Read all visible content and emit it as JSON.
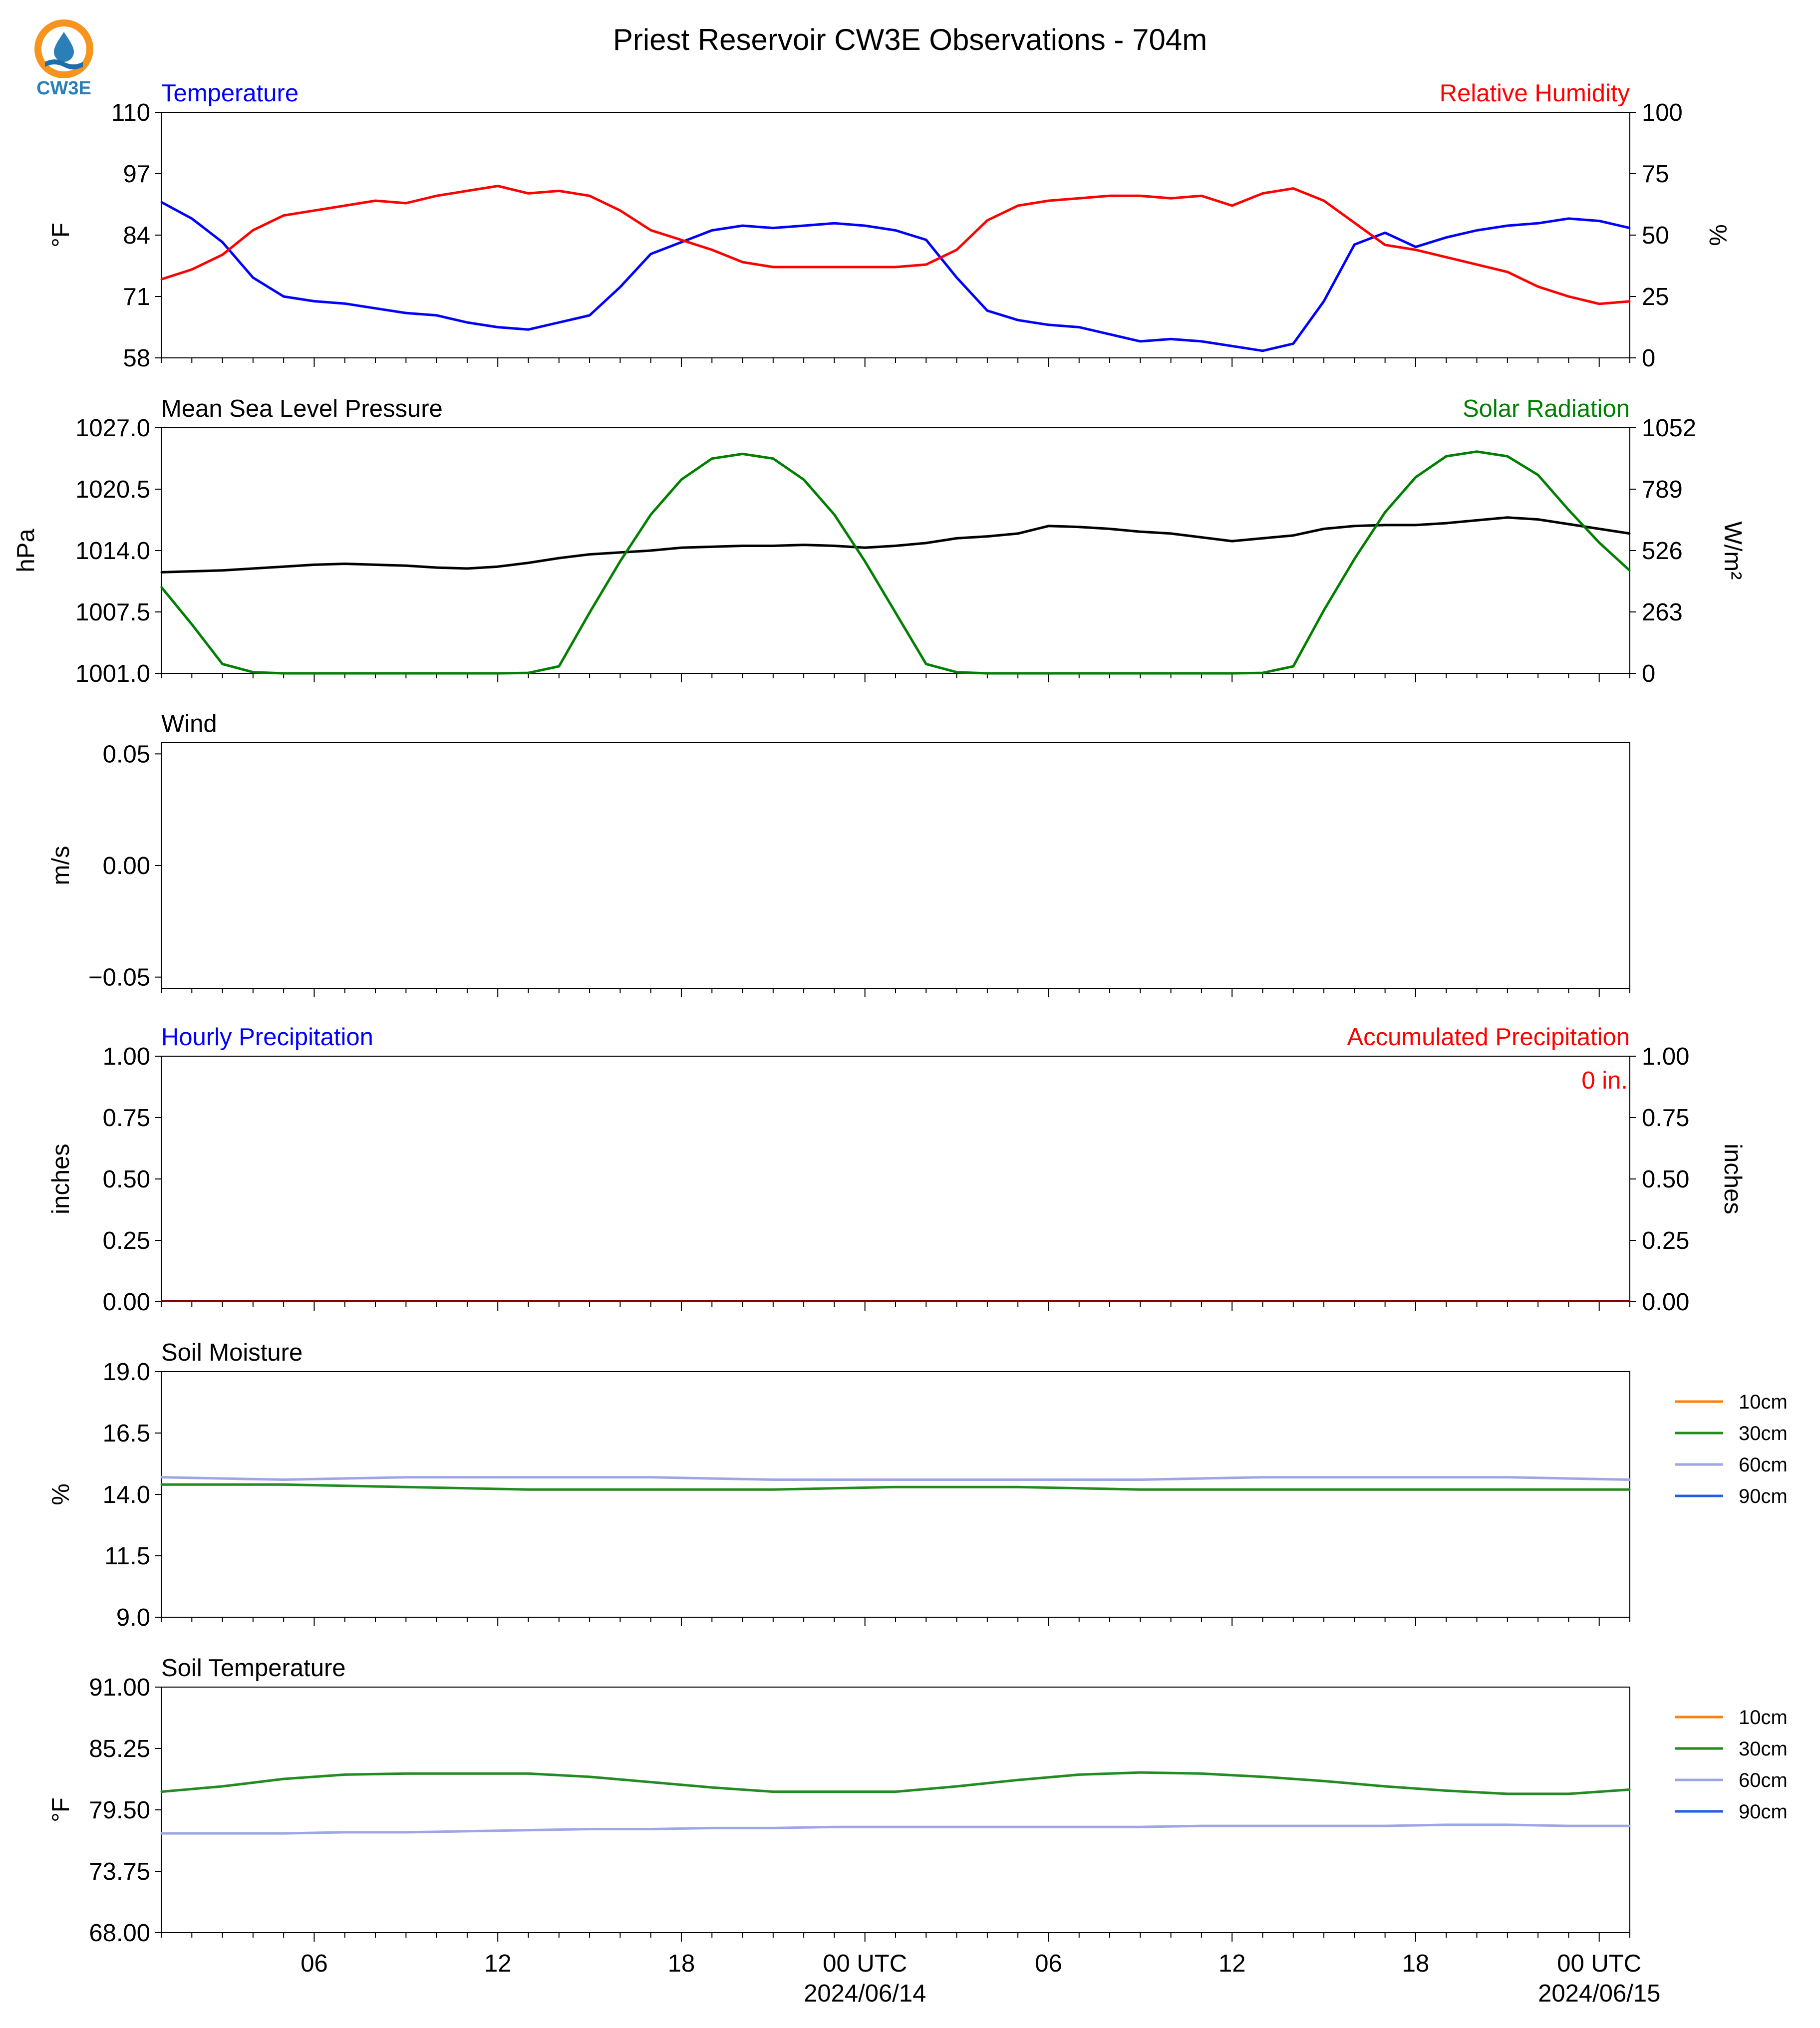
{
  "title": "Priest Reservoir CW3E Observations - 704m",
  "logo": {
    "text": "CW3E",
    "colors": {
      "ring": "#f7941d",
      "drop": "#2a7fb8",
      "wave": "#1b6fa8",
      "text": "#2a7fb8"
    }
  },
  "chart_data": [
    {
      "type": "line",
      "title_left": "Temperature",
      "title_right": "Relative Humidity",
      "ylabel_left": "°F",
      "ylabel_right": "%",
      "ylim_left": [
        58,
        110
      ],
      "yticks_left": [
        58,
        71,
        84,
        97,
        110
      ],
      "ylim_right": [
        0,
        100
      ],
      "yticks_right": [
        0,
        25,
        50,
        75,
        100
      ],
      "x_hours": [
        0,
        1,
        2,
        3,
        4,
        5,
        6,
        7,
        8,
        9,
        10,
        11,
        12,
        13,
        14,
        15,
        16,
        17,
        18,
        19,
        20,
        21,
        22,
        23,
        24,
        25,
        26,
        27,
        28,
        29,
        30,
        31,
        32,
        33,
        34,
        35,
        36,
        37,
        38,
        39,
        40,
        41,
        42,
        43,
        44,
        45,
        46,
        47,
        48
      ],
      "series": [
        {
          "name": "Temperature",
          "axis": "left",
          "color": "#0000ff",
          "values": [
            91,
            87.5,
            82.5,
            75,
            71,
            70,
            69.5,
            68.5,
            67.5,
            67,
            65.5,
            64.5,
            64,
            65.5,
            67,
            73,
            80,
            82.5,
            85,
            86,
            85.5,
            86,
            86.5,
            86,
            85,
            83,
            75,
            68,
            66,
            65,
            64.5,
            63,
            61.5,
            62,
            61.5,
            60.5,
            59.5,
            61,
            70,
            82,
            84.5,
            81.5,
            83.5,
            85,
            86,
            86.5,
            87.5,
            87,
            85.5
          ]
        },
        {
          "name": "Relative Humidity",
          "axis": "right",
          "color": "#ff0000",
          "values": [
            32,
            36,
            42,
            52,
            58,
            60,
            62,
            64,
            63,
            66,
            68,
            70,
            67,
            68,
            66,
            60,
            52,
            48,
            44,
            39,
            37,
            37,
            37,
            37,
            37,
            38,
            44,
            56,
            62,
            64,
            65,
            66,
            66,
            65,
            66,
            62,
            67,
            69,
            64,
            55,
            46,
            44,
            41,
            38,
            35,
            29,
            25,
            22,
            23
          ]
        }
      ]
    },
    {
      "type": "line",
      "title_left": "Mean Sea Level Pressure",
      "title_right": "Solar Radiation",
      "ylabel_left": "hPa",
      "ylabel_right": "W/m²",
      "ylim_left": [
        1001.0,
        1027.0
      ],
      "yticks_left": [
        "1001.0",
        "1007.5",
        "1014.0",
        "1020.5",
        "1027.0"
      ],
      "ylim_right": [
        0,
        1052
      ],
      "yticks_right": [
        0,
        263,
        526,
        789,
        1052
      ],
      "x_hours": [
        0,
        1,
        2,
        3,
        4,
        5,
        6,
        7,
        8,
        9,
        10,
        11,
        12,
        13,
        14,
        15,
        16,
        17,
        18,
        19,
        20,
        21,
        22,
        23,
        24,
        25,
        26,
        27,
        28,
        29,
        30,
        31,
        32,
        33,
        34,
        35,
        36,
        37,
        38,
        39,
        40,
        41,
        42,
        43,
        44,
        45,
        46,
        47,
        48
      ],
      "series": [
        {
          "name": "Mean Sea Level Pressure",
          "axis": "left",
          "color": "#000000",
          "values": [
            1011.7,
            1011.8,
            1011.9,
            1012.1,
            1012.3,
            1012.5,
            1012.6,
            1012.5,
            1012.4,
            1012.2,
            1012.1,
            1012.3,
            1012.7,
            1013.2,
            1013.6,
            1013.8,
            1014.0,
            1014.3,
            1014.4,
            1014.5,
            1014.5,
            1014.6,
            1014.5,
            1014.3,
            1014.5,
            1014.8,
            1015.3,
            1015.5,
            1015.8,
            1016.6,
            1016.5,
            1016.3,
            1016.0,
            1015.8,
            1015.4,
            1015.0,
            1015.3,
            1015.6,
            1016.3,
            1016.6,
            1016.7,
            1016.7,
            1016.9,
            1017.2,
            1017.5,
            1017.3,
            1016.8,
            1016.3,
            1015.8
          ]
        },
        {
          "name": "Solar Radiation",
          "axis": "right",
          "color": "#008000",
          "values": [
            370,
            210,
            40,
            5,
            0,
            0,
            0,
            0,
            0,
            0,
            0,
            0,
            2,
            30,
            260,
            480,
            680,
            830,
            920,
            940,
            920,
            830,
            680,
            480,
            260,
            40,
            5,
            0,
            0,
            0,
            0,
            0,
            0,
            0,
            0,
            0,
            2,
            30,
            270,
            490,
            690,
            840,
            930,
            950,
            930,
            850,
            700,
            560,
            440
          ]
        }
      ]
    },
    {
      "type": "line",
      "title_left": "Wind",
      "ylabel_left": "m/s",
      "ylim_left": [
        -0.055,
        0.055
      ],
      "yticks_left": [
        "−0.05",
        "0.00",
        "0.05"
      ],
      "series": []
    },
    {
      "type": "bar",
      "title_left": "Hourly Precipitation",
      "title_right": "Accumulated Precipitation",
      "annotation": "0 in.",
      "ylabel_left": "inches",
      "ylabel_right": "inches",
      "ylim_left": [
        0,
        1
      ],
      "yticks_left": [
        "0.00",
        "0.25",
        "0.50",
        "0.75",
        "1.00"
      ],
      "ylim_right": [
        0,
        1
      ],
      "yticks_right": [
        "0.00",
        "0.25",
        "0.50",
        "0.75",
        "1.00"
      ],
      "x_hours": [
        0,
        48
      ],
      "series": [
        {
          "name": "Accumulated Precipitation",
          "axis": "right",
          "color": "#8b0000",
          "values": [
            0,
            0
          ]
        }
      ]
    },
    {
      "type": "line",
      "title_left": "Soil Moisture",
      "ylabel_left": "%",
      "ylim_left": [
        9.0,
        19.0
      ],
      "yticks_left": [
        "9.0",
        "11.5",
        "14.0",
        "16.5",
        "19.0"
      ],
      "legend": "right",
      "legend_entries": [
        {
          "name": "10cm",
          "color": "#ff7f0e"
        },
        {
          "name": "30cm",
          "color": "#228b22"
        },
        {
          "name": "60cm",
          "color": "#9ea6e6"
        },
        {
          "name": "90cm",
          "color": "#1f5fe0"
        }
      ],
      "x_hours": [
        0,
        4,
        8,
        12,
        16,
        20,
        24,
        28,
        32,
        36,
        40,
        44,
        48
      ],
      "series": [
        {
          "name": "30cm",
          "axis": "left",
          "color": "#228b22",
          "values": [
            14.4,
            14.4,
            14.3,
            14.2,
            14.2,
            14.2,
            14.3,
            14.3,
            14.2,
            14.2,
            14.2,
            14.2,
            14.2
          ]
        },
        {
          "name": "60cm",
          "axis": "left",
          "color": "#9ea6e6",
          "values": [
            14.7,
            14.6,
            14.7,
            14.7,
            14.7,
            14.6,
            14.6,
            14.6,
            14.6,
            14.7,
            14.7,
            14.7,
            14.6
          ]
        }
      ]
    },
    {
      "type": "line",
      "title_left": "Soil Temperature",
      "ylabel_left": "°F",
      "ylim_left": [
        68.0,
        91.0
      ],
      "yticks_left": [
        "68.00",
        "73.75",
        "79.50",
        "85.25",
        "91.00"
      ],
      "legend": "right",
      "legend_entries": [
        {
          "name": "10cm",
          "color": "#ff7f0e"
        },
        {
          "name": "30cm",
          "color": "#228b22"
        },
        {
          "name": "60cm",
          "color": "#9ea6e6"
        },
        {
          "name": "90cm",
          "color": "#1f5fe0"
        }
      ],
      "x_hours": [
        0,
        2,
        4,
        6,
        8,
        10,
        12,
        14,
        16,
        18,
        20,
        22,
        24,
        26,
        28,
        30,
        32,
        34,
        36,
        38,
        40,
        42,
        44,
        46,
        48
      ],
      "series": [
        {
          "name": "30cm",
          "axis": "left",
          "color": "#228b22",
          "values": [
            81.2,
            81.7,
            82.4,
            82.8,
            82.9,
            82.9,
            82.9,
            82.6,
            82.1,
            81.6,
            81.2,
            81.2,
            81.2,
            81.7,
            82.3,
            82.8,
            83.0,
            82.9,
            82.6,
            82.2,
            81.7,
            81.3,
            81.0,
            81.0,
            81.4
          ]
        },
        {
          "name": "60cm",
          "axis": "left",
          "color": "#9ea6e6",
          "values": [
            77.3,
            77.3,
            77.3,
            77.4,
            77.4,
            77.5,
            77.6,
            77.7,
            77.7,
            77.8,
            77.8,
            77.9,
            77.9,
            77.9,
            77.9,
            77.9,
            77.9,
            78.0,
            78.0,
            78.0,
            78.0,
            78.1,
            78.1,
            78.0,
            78.0
          ]
        }
      ]
    }
  ],
  "x_axis": {
    "range_hours": [
      0,
      48
    ],
    "tick_labels": [
      {
        "hour": 5,
        "label": "06"
      },
      {
        "hour": 11,
        "label": "12"
      },
      {
        "hour": 17,
        "label": "18"
      },
      {
        "hour": 23,
        "label": "00 UTC",
        "date": "2024/06/14"
      },
      {
        "hour": 29,
        "label": "06"
      },
      {
        "hour": 35,
        "label": "12"
      },
      {
        "hour": 41,
        "label": "18"
      },
      {
        "hour": 47,
        "label": "00 UTC",
        "date": "2024/06/15"
      }
    ]
  }
}
